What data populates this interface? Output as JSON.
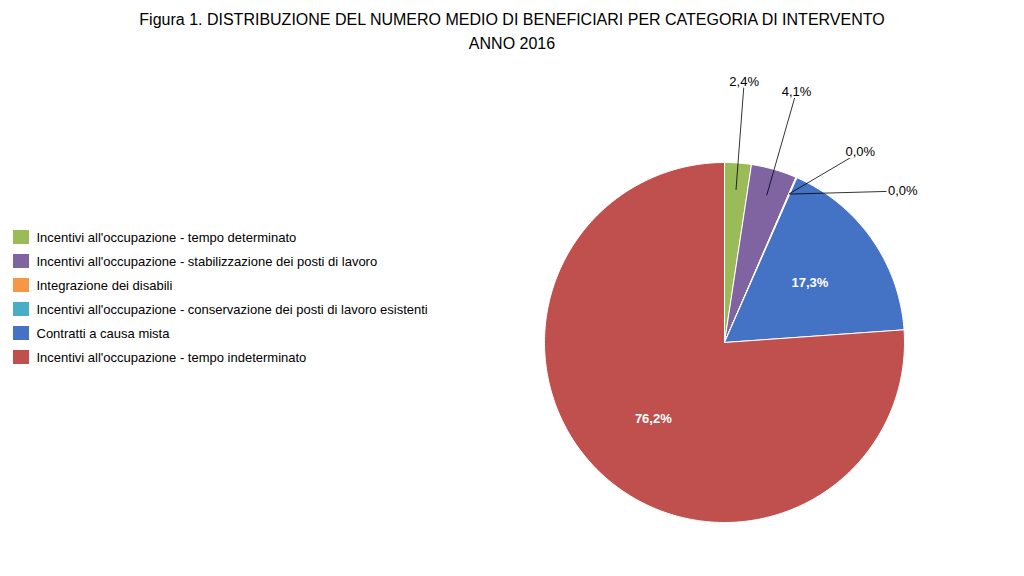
{
  "chart_data": {
    "type": "pie",
    "title": "Figura 1.  DISTRIBUZIONE DEL NUMERO MEDIO DI BENEFICIARI PER CATEGORIA DI INTERVENTO",
    "subtitle": "ANNO 2016",
    "categories": [
      "Incentivi all'occupazione - tempo determinato",
      "Incentivi all'occupazione - stabilizzazione dei posti di lavoro",
      "Integrazione dei disabili",
      "Incentivi all'occupazione - conservazione dei posti di lavoro esistenti",
      "Contratti a causa mista",
      "Incentivi all'occupazione - tempo indeterminato"
    ],
    "values": [
      2.4,
      4.1,
      0.05,
      0.05,
      17.3,
      76.2
    ],
    "value_labels": [
      "2,4%",
      "4,1%",
      "0,0%",
      "0,0%",
      "17,3%",
      "76,2%"
    ],
    "colors": [
      "#9bbb59",
      "#8064a2",
      "#f79646",
      "#4bacc6",
      "#4472c4",
      "#c0504d"
    ],
    "data_labels": true,
    "legend": "left"
  }
}
